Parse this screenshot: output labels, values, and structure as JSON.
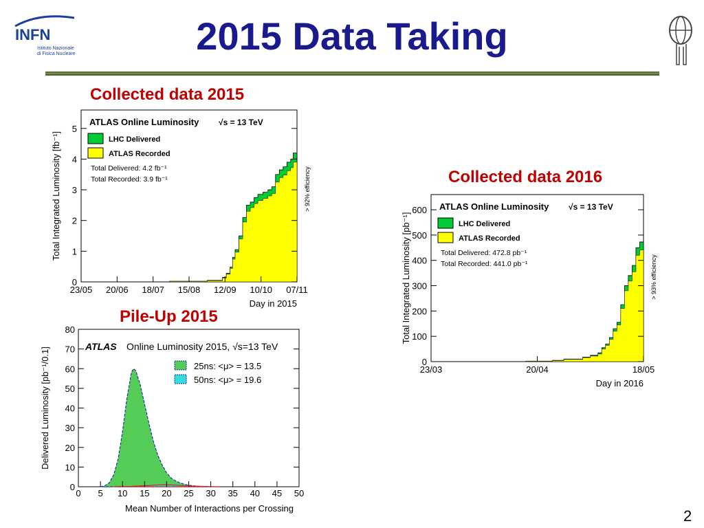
{
  "slide": {
    "title": "2015 Data Taking",
    "captions": {
      "collected_2015": "Collected data 2015",
      "collected_2016": "Collected data 2016",
      "pileup_2015": "Pile-Up 2015"
    },
    "page_number": "2",
    "logo_left": {
      "name": "INFN",
      "subtitle1": "Istituto Nazionale",
      "subtitle2": "di Fisica Nucleare"
    },
    "colors": {
      "title": "#1a1a8c",
      "caption": "#c00000",
      "rule": "#556b2f"
    }
  },
  "chart_data": [
    {
      "id": "lumi2015",
      "type": "area",
      "title": "ATLAS Online Luminosity",
      "energy": "√s = 13 TeV",
      "xlabel": "Day in 2015",
      "ylabel": "Total Integrated Luminosity [fb⁻¹]",
      "x_ticks": [
        "23/05",
        "20/06",
        "18/07",
        "15/08",
        "12/09",
        "10/10",
        "07/11"
      ],
      "xlim_days": [
        0,
        171
      ],
      "ylim": [
        0,
        5.6
      ],
      "y_ticks": [
        0,
        1,
        2,
        3,
        4,
        5
      ],
      "legend": [
        {
          "label": "LHC Delivered",
          "color": "#00cc33"
        },
        {
          "label": "ATLAS Recorded",
          "color": "#ffff00"
        }
      ],
      "totals": [
        "Total Delivered: 4.2 fb⁻¹",
        "Total Recorded: 3.9 fb⁻¹"
      ],
      "side_label": "> 92% efficiency",
      "series": [
        {
          "name": "LHC Delivered",
          "x": [
            0,
            70,
            100,
            112,
            115,
            118,
            120,
            122,
            125,
            128,
            131,
            134,
            137,
            140,
            144,
            148,
            151,
            154,
            157,
            160,
            163,
            166,
            168,
            171
          ],
          "y": [
            0,
            0.02,
            0.05,
            0.15,
            0.28,
            0.48,
            0.8,
            1.05,
            1.5,
            2.1,
            2.5,
            2.6,
            2.75,
            2.85,
            2.92,
            3.0,
            3.1,
            3.5,
            3.65,
            3.75,
            3.9,
            4.0,
            4.2,
            4.2
          ]
        },
        {
          "name": "ATLAS Recorded",
          "x": [
            0,
            70,
            100,
            112,
            115,
            118,
            120,
            122,
            125,
            128,
            131,
            134,
            137,
            140,
            144,
            148,
            151,
            154,
            157,
            160,
            163,
            166,
            168,
            171
          ],
          "y": [
            0,
            0.02,
            0.04,
            0.13,
            0.25,
            0.44,
            0.74,
            0.97,
            1.4,
            1.95,
            2.3,
            2.42,
            2.55,
            2.65,
            2.72,
            2.8,
            2.88,
            3.25,
            3.4,
            3.48,
            3.62,
            3.72,
            3.9,
            3.9
          ]
        }
      ]
    },
    {
      "id": "lumi2016",
      "type": "area",
      "title": "ATLAS Online Luminosity",
      "energy": "√s = 13 TeV",
      "xlabel": "Day in 2016",
      "ylabel": "Total Integrated Luminosity [pb⁻¹]",
      "x_ticks": [
        "23/03",
        "20/04",
        "18/05"
      ],
      "xlim_days": [
        0,
        56
      ],
      "ylim": [
        0,
        660
      ],
      "y_ticks": [
        0,
        100,
        200,
        300,
        400,
        500,
        600
      ],
      "legend": [
        {
          "label": "LHC Delivered",
          "color": "#00cc33"
        },
        {
          "label": "ATLAS Recorded",
          "color": "#ffff00"
        }
      ],
      "totals": [
        "Total Delivered: 472.8 pb⁻¹",
        "Total Recorded: 441.0 pb⁻¹"
      ],
      "side_label": "> 93% efficiency",
      "series": [
        {
          "name": "LHC Delivered",
          "x": [
            0,
            25,
            32,
            35,
            40,
            42,
            44,
            45,
            46,
            47,
            48,
            49,
            50,
            51,
            52,
            53,
            54,
            55,
            56
          ],
          "y": [
            0,
            2,
            5,
            10,
            18,
            25,
            35,
            55,
            70,
            95,
            130,
            155,
            225,
            300,
            340,
            380,
            450,
            472.8,
            472.8
          ]
        },
        {
          "name": "ATLAS Recorded",
          "x": [
            0,
            25,
            32,
            35,
            40,
            42,
            44,
            45,
            46,
            47,
            48,
            49,
            50,
            51,
            52,
            53,
            54,
            55,
            56
          ],
          "y": [
            0,
            2,
            4,
            9,
            16,
            22,
            30,
            50,
            64,
            88,
            120,
            145,
            210,
            280,
            318,
            355,
            420,
            441.0,
            441.0
          ]
        }
      ]
    },
    {
      "id": "pileup2015",
      "type": "area",
      "title": "ATLAS",
      "subtitle": "Online Luminosity 2015, √s=13 TeV",
      "xlabel": "Mean Number of Interactions per Crossing",
      "ylabel": "Delivered Luminosity [pb⁻¹/0.1]",
      "xlim": [
        0,
        50
      ],
      "x_ticks": [
        0,
        5,
        10,
        15,
        20,
        25,
        30,
        35,
        40,
        45,
        50
      ],
      "ylim": [
        0,
        80
      ],
      "y_ticks": [
        0,
        10,
        20,
        30,
        40,
        50,
        60,
        70,
        80
      ],
      "legend": [
        {
          "label": "25ns: <μ> = 13.5",
          "color": "#55cc55"
        },
        {
          "label": "50ns: <μ> = 19.6",
          "color": "#33dddd"
        }
      ],
      "series": [
        {
          "name": "25ns: <μ> = 13.5",
          "x": [
            5,
            6,
            7,
            8,
            9,
            10,
            11,
            12,
            12.5,
            13,
            14,
            15,
            16,
            17,
            18,
            19,
            20,
            21,
            22,
            23,
            24,
            25,
            26,
            27,
            28,
            30
          ],
          "y": [
            0,
            0.5,
            2,
            6,
            14,
            28,
            45,
            58,
            60,
            59,
            52,
            42,
            32,
            23,
            16,
            11,
            7,
            4.5,
            3,
            2,
            1.3,
            0.8,
            0.5,
            0.3,
            0.1,
            0
          ]
        },
        {
          "name": "50ns: <μ> = 19.6",
          "x": [
            8,
            12,
            16,
            18,
            20,
            22,
            24,
            28,
            32
          ],
          "y": [
            0,
            0.2,
            0.6,
            0.9,
            1.0,
            0.8,
            0.5,
            0.2,
            0
          ]
        }
      ]
    }
  ]
}
